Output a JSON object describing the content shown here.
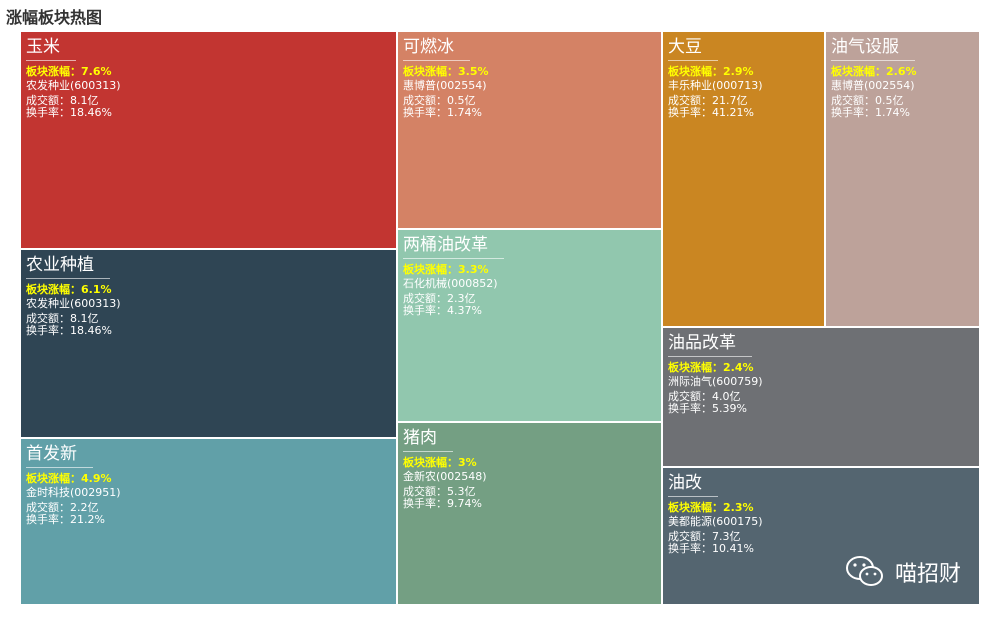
{
  "title": "涨幅板块热图",
  "watermark": {
    "icon": "wechat-icon",
    "text": "喵招财"
  },
  "chart_data": {
    "type": "treemap",
    "title": "涨幅板块热图",
    "gain_label": "板块涨幅：",
    "amount_label": "成交额：",
    "turnover_label": "换手率：",
    "sectors": [
      {
        "name": "玉米",
        "gain": "7.6%",
        "stock": "农发种业(600313)",
        "amount": "8.1亿",
        "turnover": "18.46%",
        "color": "#c23531"
      },
      {
        "name": "农业种植",
        "gain": "6.1%",
        "stock": "农发种业(600313)",
        "amount": "8.1亿",
        "turnover": "18.46%",
        "color": "#2f4554"
      },
      {
        "name": "首发新",
        "gain": "4.9%",
        "stock": "金时科技(002951)",
        "amount": "2.2亿",
        "turnover": "21.2%",
        "color": "#61a0a8"
      },
      {
        "name": "可燃冰",
        "gain": "3.5%",
        "stock": "惠博普(002554)",
        "amount": "0.5亿",
        "turnover": "1.74%",
        "color": "#d48265"
      },
      {
        "name": "两桶油改革",
        "gain": "3.3%",
        "stock": "石化机械(000852)",
        "amount": "2.3亿",
        "turnover": "4.37%",
        "color": "#91c7ae"
      },
      {
        "name": "猪肉",
        "gain": "3%",
        "stock": "金新农(002548)",
        "amount": "5.3亿",
        "turnover": "9.74%",
        "color": "#749f83"
      },
      {
        "name": "大豆",
        "gain": "2.9%",
        "stock": "丰乐种业(000713)",
        "amount": "21.7亿",
        "turnover": "41.21%",
        "color": "#ca8622"
      },
      {
        "name": "油气设服",
        "gain": "2.6%",
        "stock": "惠博普(002554)",
        "amount": "0.5亿",
        "turnover": "1.74%",
        "color": "#bda29a"
      },
      {
        "name": "油品改革",
        "gain": "2.4%",
        "stock": "洲际油气(600759)",
        "amount": "4.0亿",
        "turnover": "5.39%",
        "color": "#6e7074"
      },
      {
        "name": "油改",
        "gain": "2.3%",
        "stock": "美都能源(600175)",
        "amount": "7.3亿",
        "turnover": "10.41%",
        "color": "#546570"
      }
    ]
  }
}
